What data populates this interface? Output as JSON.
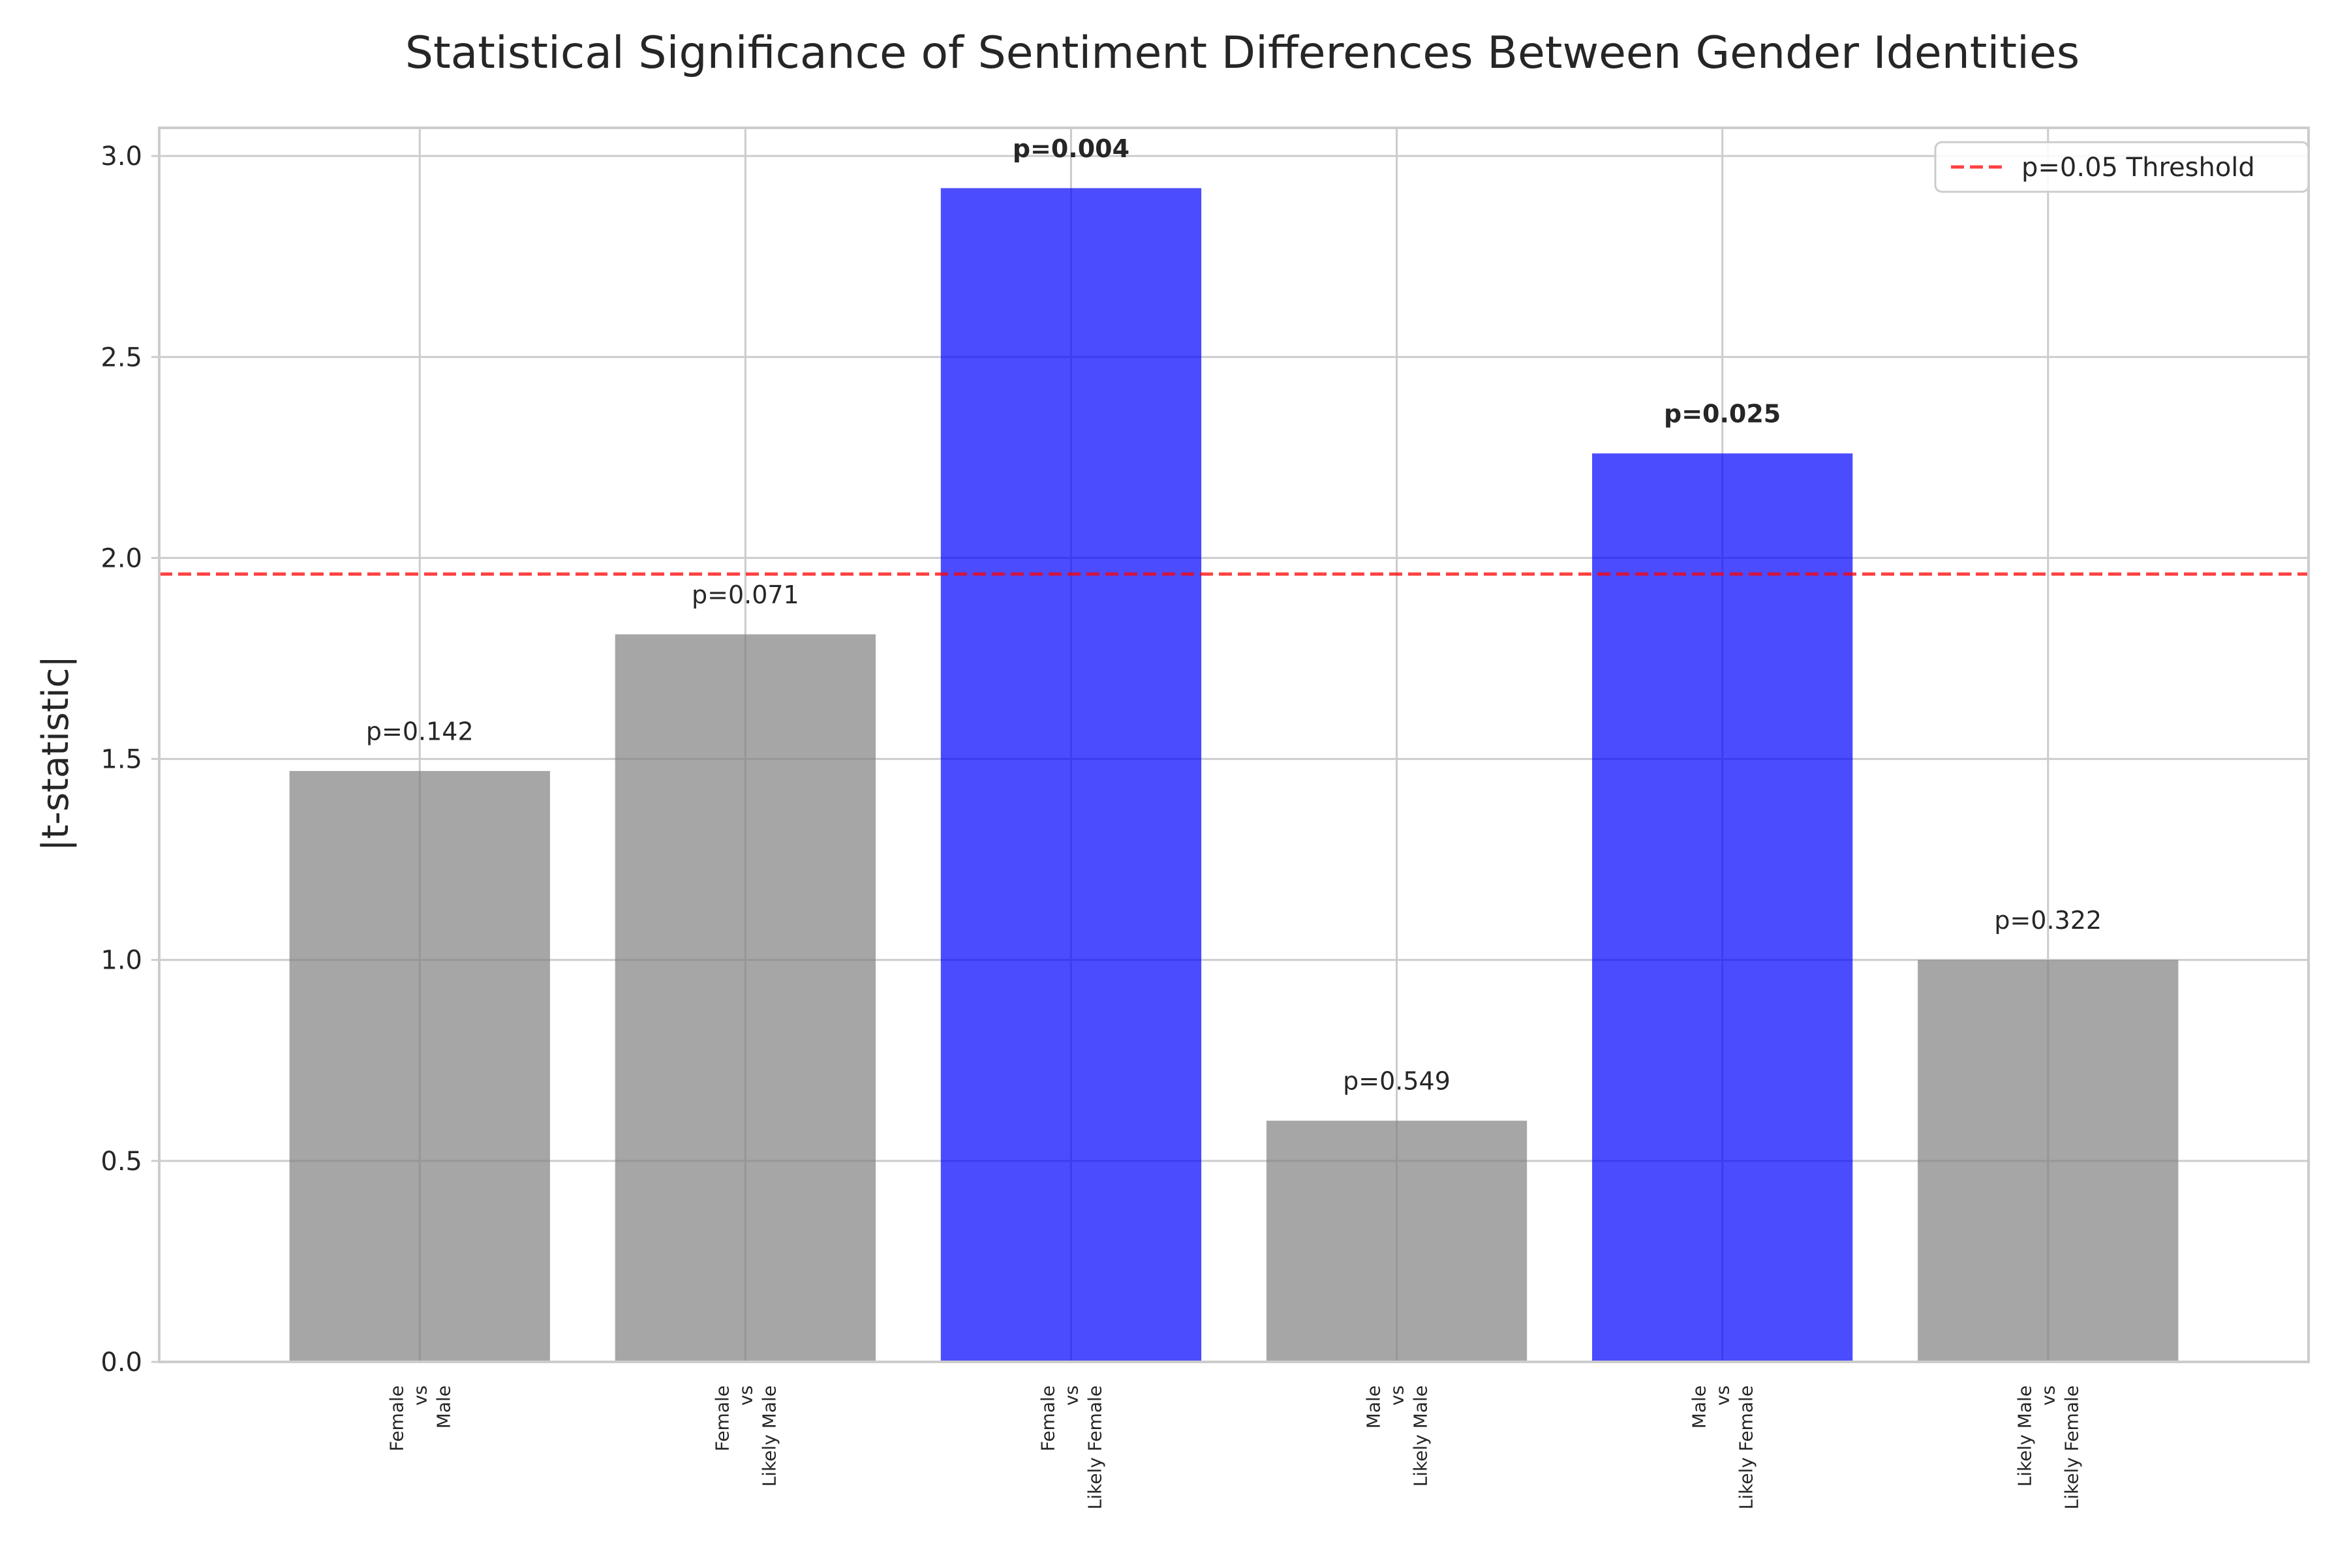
{
  "chart_data": {
    "type": "bar",
    "title": "Statistical Significance of Sentiment Differences Between Gender Identities",
    "xlabel": "",
    "ylabel": "|t-statistic|",
    "ylim": [
      0,
      3.07
    ],
    "yticks": [
      "0.0",
      "0.5",
      "1.0",
      "1.5",
      "2.0",
      "2.5",
      "3.0"
    ],
    "grid": true,
    "legend_position": "top-right",
    "categories": [
      [
        "Female",
        "vs",
        "Male"
      ],
      [
        "Female",
        "vs",
        "Likely Male"
      ],
      [
        "Female",
        "vs",
        "Likely Female"
      ],
      [
        "Male",
        "vs",
        "Likely Male"
      ],
      [
        "Male",
        "vs",
        "Likely Female"
      ],
      [
        "Likely Male",
        "vs",
        "Likely Female"
      ]
    ],
    "values": [
      1.47,
      1.81,
      2.92,
      0.6,
      2.26,
      1.0
    ],
    "p_labels": [
      "p=0.142",
      "p=0.071",
      "p=0.004",
      "p=0.549",
      "p=0.025",
      "p=0.322"
    ],
    "significant": [
      false,
      false,
      true,
      false,
      true,
      false
    ],
    "colors": {
      "significant": "#0000ff",
      "non_significant": "#808080",
      "threshold": "#ff0000"
    },
    "threshold": {
      "value": 1.96,
      "label": "p=0.05 Threshold"
    }
  }
}
